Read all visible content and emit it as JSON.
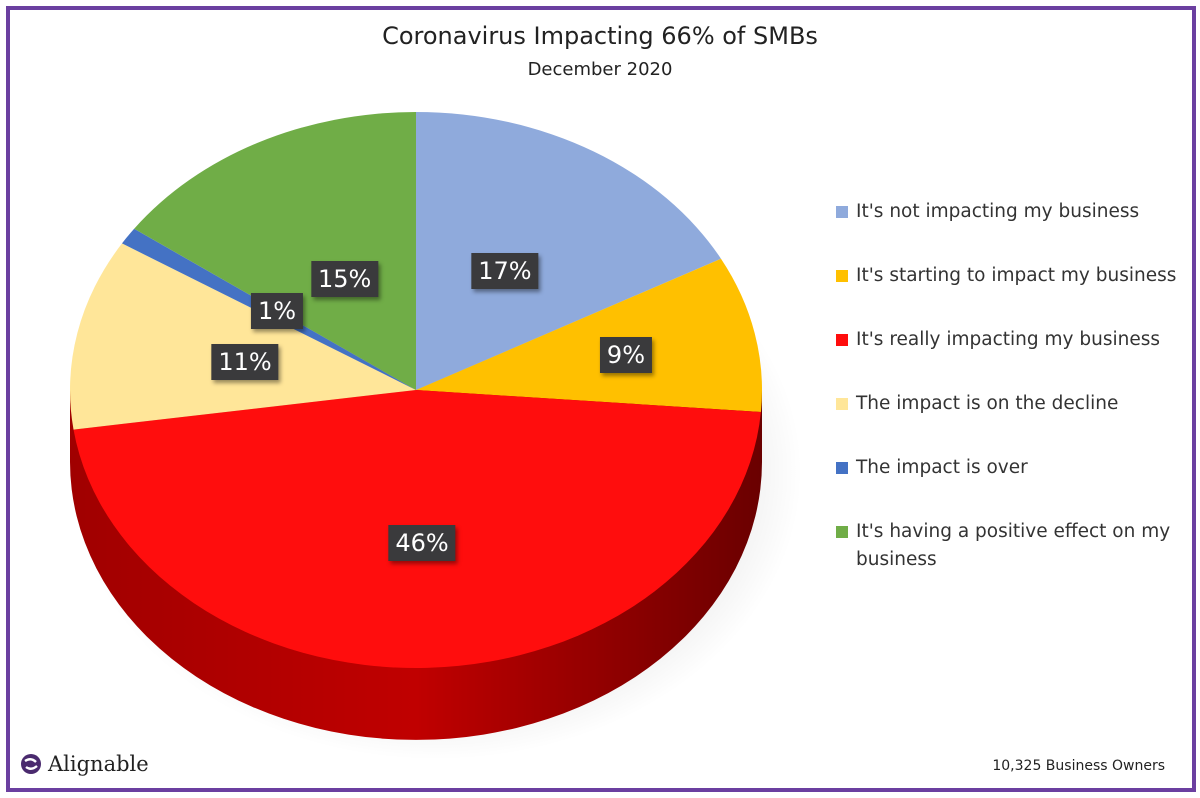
{
  "chart_data": {
    "type": "pie",
    "title": "Coronavirus Impacting 66% of SMBs",
    "subtitle": "December 2020",
    "categories": [
      "It's not impacting my business",
      "It's starting to impact my business",
      "It's really impacting my business",
      "The impact is on the decline",
      "The impact is over",
      "It's having a positive effect on my business"
    ],
    "values": [
      17,
      9,
      46,
      11,
      1,
      15
    ],
    "labels": [
      "17%",
      "9%",
      "46%",
      "11%",
      "1%",
      "15%"
    ],
    "colors": [
      "#8faadc",
      "#ffc000",
      "#ff0d0d",
      "#ffe699",
      "#4472c4",
      "#70ad47"
    ],
    "legend_position": "right"
  },
  "footer": {
    "brand": "Alignable",
    "sample": "10,325 Business Owners"
  }
}
